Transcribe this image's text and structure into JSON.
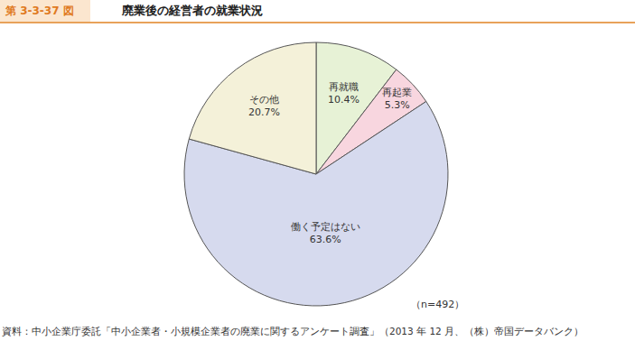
{
  "chart_data": {
    "type": "pie",
    "figure_number": "第 3-3-37 図",
    "title": "廃業後の経営者の就業状況",
    "categories": [
      "再就職",
      "再起業",
      "働く予定はない",
      "その他"
    ],
    "values": [
      10.4,
      5.3,
      63.6,
      20.7
    ],
    "value_labels": [
      "10.4%",
      "5.3%",
      "63.6%",
      "20.7%"
    ],
    "colors": [
      "#e7f2d6",
      "#f8d6df",
      "#d6daee",
      "#f4f1d9"
    ],
    "data_labels": true,
    "legend": false,
    "annotation": "（n=492）",
    "source": "資料：中小企業庁委託「中小企業者・小規模企業者の廃業に関するアンケート調査」（2013 年 12 月、（株）帝国データバンク）"
  }
}
